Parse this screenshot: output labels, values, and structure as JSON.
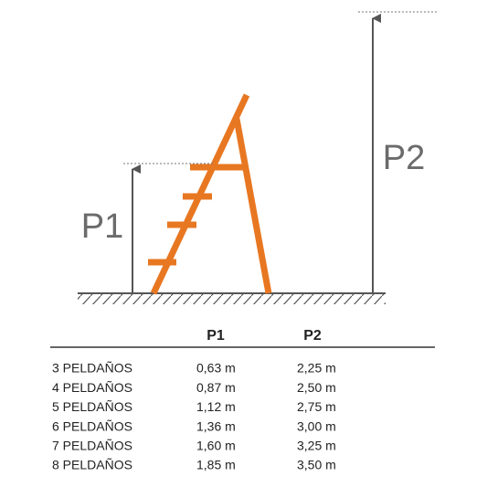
{
  "diagram": {
    "labels": {
      "p1": "P1",
      "p2": "P2"
    }
  },
  "table": {
    "header": [
      "P1",
      "P2"
    ],
    "rows": [
      [
        "3 PELDAÑOS",
        "0,63 m",
        "2,25 m"
      ],
      [
        "4 PELDAÑOS",
        "0,87 m",
        "2,50 m"
      ],
      [
        "5 PELDAÑOS",
        "1,12 m",
        "2,75 m"
      ],
      [
        "6 PELDAÑOS",
        "1,36 m",
        "3,00 m"
      ],
      [
        "7 PELDAÑOS",
        "1,60 m",
        "3,25 m"
      ],
      [
        "8 PELDAÑOS",
        "1,85 m",
        "3,50 m"
      ]
    ]
  }
}
